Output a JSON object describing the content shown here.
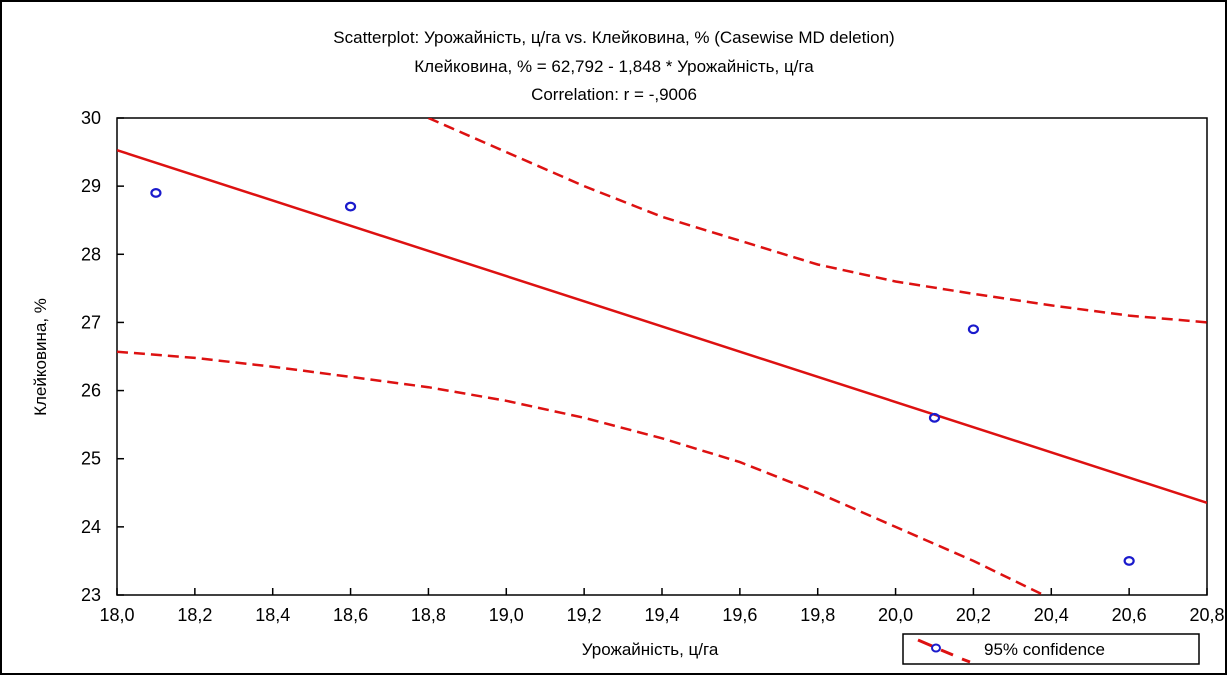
{
  "chart_data": {
    "type": "scatter",
    "title": "Scatterplot: Урожайність, ц/га vs. Клейковина, % (Casewise MD deletion)",
    "equation": "Клейковина, % = 62,792 - 1,848  * Урожайність, ц/га",
    "correlation": "Correlation: r = -,9006",
    "xlabel": "Урожайність, ц/га",
    "ylabel": "Клейковина, %",
    "xlim": [
      18.0,
      20.8
    ],
    "ylim": [
      23,
      30
    ],
    "x_ticks": [
      "18,0",
      "18,2",
      "18,4",
      "18,6",
      "18,8",
      "19,0",
      "19,2",
      "19,4",
      "19,6",
      "19,8",
      "20,0",
      "20,2",
      "20,4",
      "20,6",
      "20,8"
    ],
    "y_ticks": [
      "23",
      "24",
      "25",
      "26",
      "27",
      "28",
      "29",
      "30"
    ],
    "points": [
      {
        "x": 18.1,
        "y": 28.9
      },
      {
        "x": 18.6,
        "y": 28.7
      },
      {
        "x": 20.1,
        "y": 25.6
      },
      {
        "x": 20.2,
        "y": 26.9
      },
      {
        "x": 20.6,
        "y": 23.5
      }
    ],
    "regression": {
      "intercept": 62.792,
      "slope": -1.848
    },
    "confidence_upper": [
      [
        18.8,
        30.0
      ],
      [
        19.0,
        29.5
      ],
      [
        19.2,
        29.0
      ],
      [
        19.4,
        28.55
      ],
      [
        19.6,
        28.2
      ],
      [
        19.8,
        27.85
      ],
      [
        20.0,
        27.6
      ],
      [
        20.2,
        27.42
      ],
      [
        20.4,
        27.25
      ],
      [
        20.6,
        27.1
      ],
      [
        20.8,
        27.0
      ]
    ],
    "confidence_lower": [
      [
        18.0,
        26.57
      ],
      [
        18.2,
        26.48
      ],
      [
        18.4,
        26.35
      ],
      [
        18.6,
        26.2
      ],
      [
        18.8,
        26.05
      ],
      [
        19.0,
        25.85
      ],
      [
        19.2,
        25.6
      ],
      [
        19.4,
        25.3
      ],
      [
        19.6,
        24.95
      ],
      [
        19.8,
        24.5
      ],
      [
        20.0,
        24.0
      ],
      [
        20.2,
        23.5
      ],
      [
        20.38,
        23.0
      ]
    ],
    "legend": {
      "label": "95% confidence",
      "position": "bottom-right"
    },
    "colors": {
      "line": "#dd1111",
      "point": "#1a1acc",
      "axis": "#000000"
    },
    "grid": false
  }
}
